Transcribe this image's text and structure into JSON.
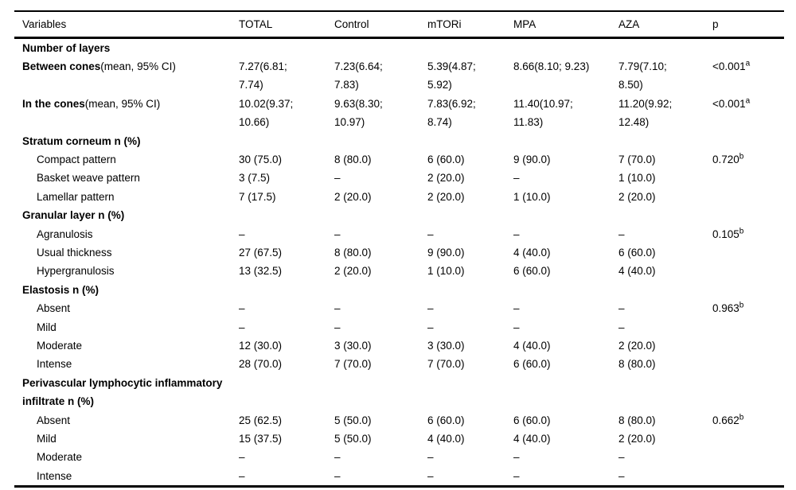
{
  "table": {
    "headers": [
      "Variables",
      "TOTAL",
      "Control",
      "mTORi",
      "MPA",
      "AZA",
      "p"
    ],
    "colors": {
      "text": "#000000",
      "background": "#ffffff",
      "rule": "#000000"
    },
    "rows": [
      {
        "type": "section",
        "label": "Number of layers"
      },
      {
        "type": "measure",
        "label_bold": "Between cones",
        "label_note": "(mean, 95% CI)",
        "values": [
          "7.27(6.81; 7.74)",
          "7.23(6.64; 7.83)",
          "5.39(4.87; 5.92)",
          "8.66(8.10; 9.23)",
          "7.79(7.10; 8.50)"
        ],
        "p": "<0.001",
        "p_sup": "a"
      },
      {
        "type": "measure",
        "label_bold": "In the cones",
        "label_note": "(mean, 95% CI)",
        "values": [
          "10.02(9.37; 10.66)",
          "9.63(8.30; 10.97)",
          "7.83(6.92; 8.74)",
          "11.40(10.97; 11.83)",
          "11.20(9.92; 12.48)"
        ],
        "p": "<0.001",
        "p_sup": "a"
      },
      {
        "type": "section",
        "label": "Stratum corneum n (%)"
      },
      {
        "type": "item",
        "label": "Compact pattern",
        "values": [
          "30 (75.0)",
          "8 (80.0)",
          "6 (60.0)",
          "9 (90.0)",
          "7 (70.0)"
        ],
        "p": "0.720",
        "p_sup": "b"
      },
      {
        "type": "item",
        "label": "Basket weave pattern",
        "values": [
          "3 (7.5)",
          "–",
          "2 (20.0)",
          "–",
          "1 (10.0)"
        ]
      },
      {
        "type": "item",
        "label": "Lamellar pattern",
        "values": [
          "7 (17.5)",
          "2 (20.0)",
          "2 (20.0)",
          "1 (10.0)",
          "2 (20.0)"
        ]
      },
      {
        "type": "section",
        "label": "Granular layer n (%)"
      },
      {
        "type": "item",
        "label": "Agranulosis",
        "values": [
          "–",
          "–",
          "–",
          "–",
          "–"
        ],
        "p": "0.105",
        "p_sup": "b"
      },
      {
        "type": "item",
        "label": "Usual thickness",
        "values": [
          "27 (67.5)",
          "8 (80.0)",
          "9 (90.0)",
          "4 (40.0)",
          "6 (60.0)"
        ]
      },
      {
        "type": "item",
        "label": "Hypergranulosis",
        "values": [
          "13 (32.5)",
          "2 (20.0)",
          "1 (10.0)",
          "6 (60.0)",
          "4 (40.0)"
        ]
      },
      {
        "type": "section",
        "label": "Elastosis n (%)"
      },
      {
        "type": "item",
        "label": "Absent",
        "values": [
          "–",
          "–",
          "–",
          "–",
          "–"
        ],
        "p": "0.963",
        "p_sup": "b"
      },
      {
        "type": "item",
        "label": "Mild",
        "values": [
          "–",
          "–",
          "–",
          "–",
          "–"
        ]
      },
      {
        "type": "item",
        "label": "Moderate",
        "values": [
          "12 (30.0)",
          "3 (30.0)",
          "3 (30.0)",
          "4 (40.0)",
          "2 (20.0)"
        ]
      },
      {
        "type": "item",
        "label": "Intense",
        "values": [
          "28 (70.0)",
          "7 (70.0)",
          "7 (70.0)",
          "6 (60.0)",
          "8 (80.0)"
        ]
      },
      {
        "type": "section",
        "label": "Perivascular lymphocytic inflammatory infiltrate n (%)"
      },
      {
        "type": "item",
        "label": "Absent",
        "values": [
          "25 (62.5)",
          "5 (50.0)",
          "6 (60.0)",
          "6 (60.0)",
          "8 (80.0)"
        ],
        "p": "0.662",
        "p_sup": "b"
      },
      {
        "type": "item",
        "label": "Mild",
        "values": [
          "15 (37.5)",
          "5 (50.0)",
          "4 (40.0)",
          "4 (40.0)",
          "2 (20.0)"
        ]
      },
      {
        "type": "item",
        "label": "Moderate",
        "values": [
          "–",
          "–",
          "–",
          "–",
          "–"
        ]
      },
      {
        "type": "item",
        "label": "Intense",
        "values": [
          "–",
          "–",
          "–",
          "–",
          "–"
        ]
      }
    ]
  }
}
